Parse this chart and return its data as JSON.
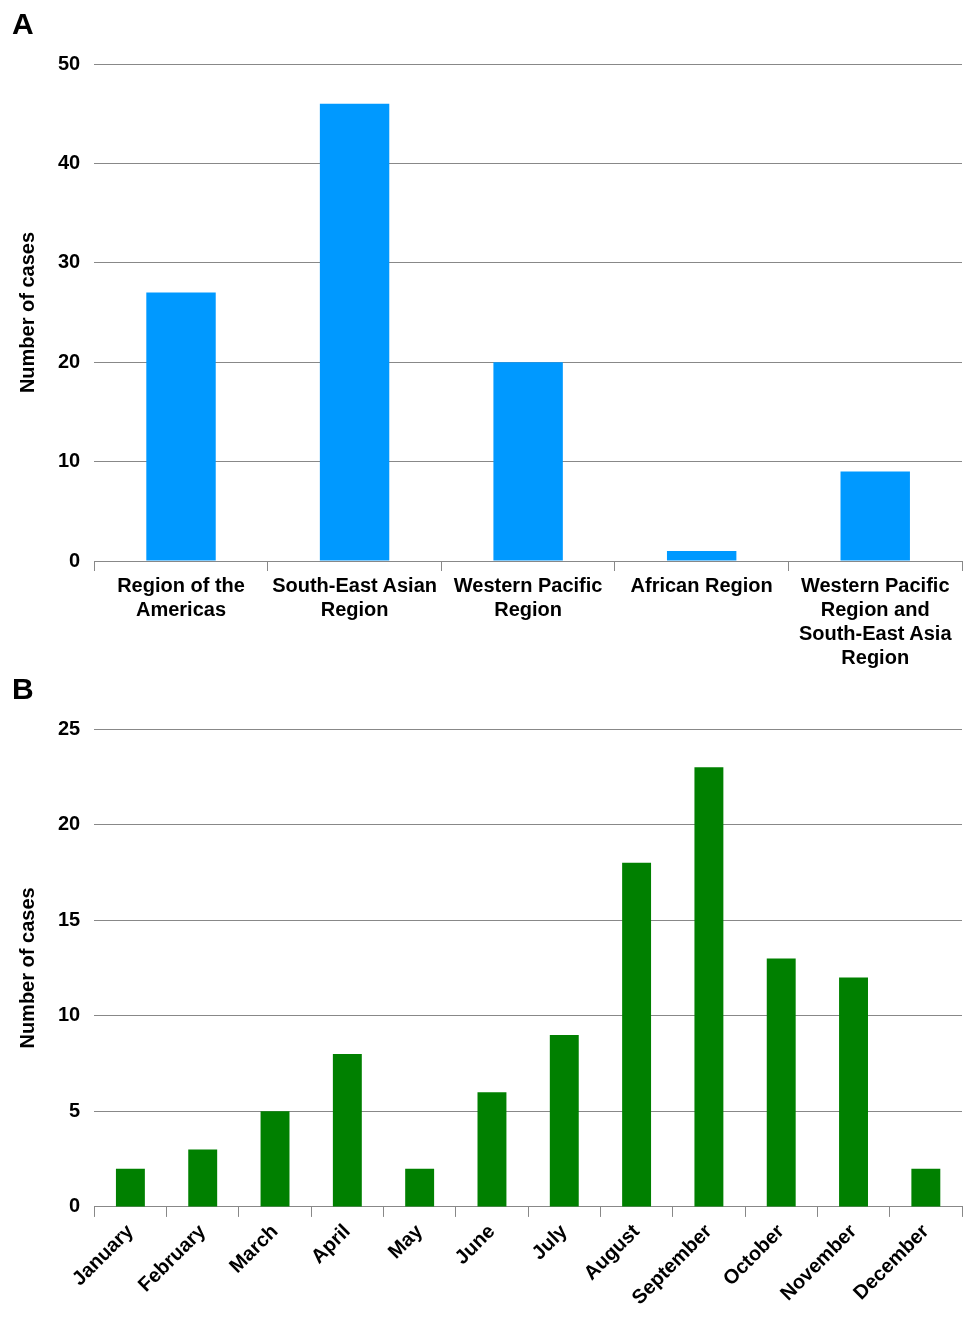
{
  "chart_data": [
    {
      "type": "bar",
      "title": "A",
      "ylabel": "Number of cases",
      "categories": [
        "Region of the Americas",
        "South-East Asian Region",
        "Western Pacific Region",
        "African Region",
        "Western Pacific Region and South-East Asia Region"
      ],
      "values": [
        27,
        46,
        20,
        1,
        9
      ],
      "color": "#0099ff",
      "ylim": [
        0,
        50
      ],
      "yticks": [
        0,
        10,
        20,
        30,
        40,
        50
      ],
      "grid": "y",
      "legend": false
    },
    {
      "type": "bar",
      "title": "B",
      "ylabel": "Number of cases",
      "categories": [
        "January",
        "February",
        "March",
        "April",
        "May",
        "June",
        "July",
        "August",
        "September",
        "October",
        "November",
        "December"
      ],
      "values": [
        2,
        3,
        5,
        8,
        2,
        6,
        9,
        18,
        23,
        13,
        12,
        2
      ],
      "color": "#008000",
      "ylim": [
        0,
        25
      ],
      "yticks": [
        0,
        5,
        10,
        15,
        20,
        25
      ],
      "grid": "y",
      "legend": false
    }
  ]
}
